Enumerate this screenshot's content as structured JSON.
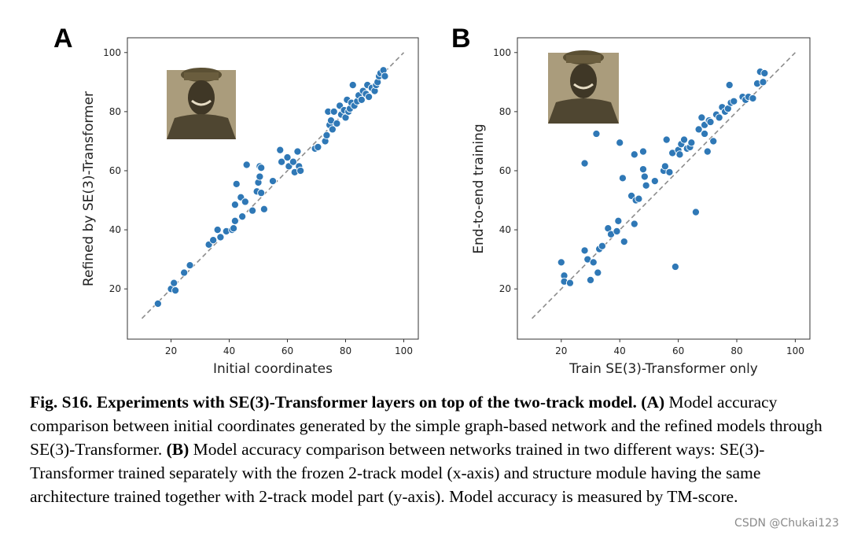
{
  "chart_data": [
    {
      "type": "scatter",
      "panel_label": "A",
      "xlabel": "Initial coordinates",
      "ylabel": "Refined by SE(3)-Transformer",
      "xlim": [
        5,
        105
      ],
      "ylim": [
        3,
        105
      ],
      "xticks": [
        20,
        40,
        60,
        80,
        100
      ],
      "yticks": [
        20,
        40,
        60,
        80,
        100
      ],
      "diagonal": [
        10,
        100
      ],
      "points": [
        [
          15.5,
          15
        ],
        [
          20,
          20
        ],
        [
          21,
          22
        ],
        [
          21.5,
          19.5
        ],
        [
          24.5,
          25.5
        ],
        [
          26.5,
          28
        ],
        [
          33,
          35
        ],
        [
          34.5,
          36.5
        ],
        [
          36,
          40
        ],
        [
          37,
          37.5
        ],
        [
          39,
          39.5
        ],
        [
          41,
          40
        ],
        [
          41.5,
          40.5
        ],
        [
          42,
          43
        ],
        [
          42,
          48.5
        ],
        [
          42.5,
          55.5
        ],
        [
          44,
          51
        ],
        [
          44.5,
          44.5
        ],
        [
          45.5,
          49.5
        ],
        [
          46,
          62
        ],
        [
          48,
          46.5
        ],
        [
          49.5,
          53
        ],
        [
          50,
          56
        ],
        [
          50.5,
          61.5
        ],
        [
          50.5,
          58
        ],
        [
          51,
          52.5
        ],
        [
          51,
          61
        ],
        [
          52,
          47
        ],
        [
          55,
          56.5
        ],
        [
          57.5,
          67
        ],
        [
          58,
          63
        ],
        [
          60,
          64.5
        ],
        [
          60.5,
          61.5
        ],
        [
          62,
          63
        ],
        [
          62.5,
          59.5
        ],
        [
          63.5,
          66.5
        ],
        [
          64,
          61.5
        ],
        [
          64.5,
          60
        ],
        [
          69.5,
          67.5
        ],
        [
          70.5,
          68
        ],
        [
          73,
          70
        ],
        [
          73.5,
          72
        ],
        [
          74,
          80
        ],
        [
          74.5,
          75.5
        ],
        [
          75,
          77
        ],
        [
          75.5,
          74
        ],
        [
          76,
          80
        ],
        [
          77,
          76
        ],
        [
          78,
          82
        ],
        [
          78.5,
          79
        ],
        [
          79.5,
          80.5
        ],
        [
          80,
          78
        ],
        [
          80.5,
          84
        ],
        [
          81,
          80
        ],
        [
          81.5,
          81
        ],
        [
          82,
          83
        ],
        [
          82.5,
          89
        ],
        [
          83,
          82
        ],
        [
          84,
          83.5
        ],
        [
          84.5,
          85.5
        ],
        [
          85.5,
          84
        ],
        [
          86,
          87
        ],
        [
          87,
          86
        ],
        [
          87.5,
          89
        ],
        [
          88,
          85
        ],
        [
          89,
          88
        ],
        [
          90,
          87
        ],
        [
          90.5,
          89
        ],
        [
          91,
          90
        ],
        [
          91.5,
          92
        ],
        [
          92,
          93
        ],
        [
          93,
          94
        ],
        [
          93.5,
          92
        ]
      ]
    },
    {
      "type": "scatter",
      "panel_label": "B",
      "xlabel": "Train SE(3)-Transformer only",
      "ylabel": "End-to-end training",
      "xlim": [
        5,
        105
      ],
      "ylim": [
        3,
        105
      ],
      "xticks": [
        20,
        40,
        60,
        80,
        100
      ],
      "yticks": [
        20,
        40,
        60,
        80,
        100
      ],
      "diagonal": [
        10,
        100
      ],
      "points": [
        [
          20,
          29
        ],
        [
          21,
          24.5
        ],
        [
          21,
          22.5
        ],
        [
          23,
          22
        ],
        [
          28,
          33
        ],
        [
          28,
          62.5
        ],
        [
          29,
          30
        ],
        [
          30,
          23
        ],
        [
          31,
          29
        ],
        [
          32,
          72.5
        ],
        [
          32.5,
          25.5
        ],
        [
          33,
          33.5
        ],
        [
          34,
          34.5
        ],
        [
          36,
          40.5
        ],
        [
          37,
          38.5
        ],
        [
          39,
          39.5
        ],
        [
          39.5,
          43
        ],
        [
          40,
          69.5
        ],
        [
          41,
          57.5
        ],
        [
          41.5,
          36
        ],
        [
          44,
          51.5
        ],
        [
          45,
          42
        ],
        [
          45,
          65.5
        ],
        [
          45.5,
          50
        ],
        [
          46.5,
          50.5
        ],
        [
          48,
          60.5
        ],
        [
          48,
          66.5
        ],
        [
          48.5,
          58
        ],
        [
          49,
          55
        ],
        [
          52,
          56.5
        ],
        [
          55,
          60
        ],
        [
          55.5,
          61.5
        ],
        [
          56,
          70.5
        ],
        [
          57,
          59.5
        ],
        [
          58,
          66
        ],
        [
          59,
          27.5
        ],
        [
          60,
          67
        ],
        [
          60.5,
          65.5
        ],
        [
          61,
          69
        ],
        [
          62,
          70.5
        ],
        [
          63,
          67.5
        ],
        [
          64,
          68
        ],
        [
          64.5,
          69.5
        ],
        [
          66,
          46
        ],
        [
          67,
          74
        ],
        [
          68,
          78
        ],
        [
          69,
          72.5
        ],
        [
          69,
          75.5
        ],
        [
          70,
          66.5
        ],
        [
          70.5,
          77
        ],
        [
          71,
          76.5
        ],
        [
          72,
          70
        ],
        [
          73,
          79
        ],
        [
          74,
          78
        ],
        [
          75,
          81.5
        ],
        [
          76,
          80
        ],
        [
          77,
          81
        ],
        [
          77.5,
          89
        ],
        [
          78,
          83
        ],
        [
          79,
          83.5
        ],
        [
          82,
          85
        ],
        [
          83,
          84
        ],
        [
          84,
          85
        ],
        [
          85.5,
          84.5
        ],
        [
          87,
          89.5
        ],
        [
          88,
          93.5
        ],
        [
          89,
          90
        ],
        [
          89.5,
          93
        ]
      ]
    }
  ],
  "caption": {
    "title": "Fig. S16. Experiments with SE(3)-Transformer layers on top of the two-track model.",
    "label_a": "(A)",
    "text_a": "Model accuracy comparison between initial coordinates generated by the simple graph-based network and the refined models through SE(3)-Transformer.",
    "label_b": "(B)",
    "text_b": "Model accuracy comparison between networks trained in two different ways: SE(3)-Transformer trained separately with the frozen 2-track model (x-axis) and structure module having the same architecture trained together with 2-track model part (y-axis). Model accuracy is measured by TM-score."
  },
  "watermark": "CSDN @Chukai123",
  "colors": {
    "point": "#2f78b6",
    "point_edge": "#ffffff",
    "diagonal": "#8c8c8c",
    "axis": "#333333"
  }
}
